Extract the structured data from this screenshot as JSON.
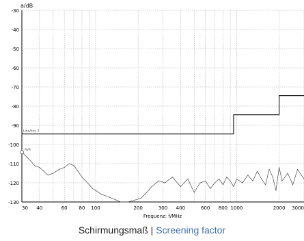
{
  "chart_data": {
    "type": "line",
    "title": "",
    "ylabel": "a/dB",
    "xlabel": "Frequenz: f/MHz",
    "x_scale": "log",
    "xlim": [
      30,
      3000
    ],
    "ylim": [
      -130,
      -30
    ],
    "grid": true,
    "x_tick_labels": [
      "30",
      "40",
      "60",
      "80",
      "100",
      "200",
      "300",
      "400",
      "600",
      "800",
      "1000",
      "2000",
      "3000"
    ],
    "x_tick_values": [
      30,
      40,
      60,
      80,
      100,
      200,
      300,
      400,
      600,
      800,
      1000,
      2000,
      3000
    ],
    "y_tick_values": [
      -30,
      -40,
      -50,
      -60,
      -70,
      -80,
      -90,
      -100,
      -110,
      -120,
      -130
    ],
    "y_tick_labels": [
      "-30",
      "-40",
      "-50",
      "-60",
      "-70",
      "-80",
      "-90",
      "-100",
      "-110",
      "-120",
      "-130"
    ],
    "limit_line": {
      "label": "Line/line 2",
      "x": [
        30,
        950,
        950,
        2000,
        2000,
        3000
      ],
      "y": [
        -94.5,
        -94.5,
        -84.5,
        -84.5,
        -74.5,
        -74.5
      ]
    },
    "series": [
      {
        "name": "AVR",
        "x": [
          30,
          31,
          33,
          35,
          37,
          40,
          43,
          46,
          50,
          55,
          60,
          65,
          70,
          75,
          80,
          85,
          90,
          95,
          100,
          110,
          120,
          130,
          140,
          150,
          170,
          190,
          210,
          230,
          250,
          280,
          310,
          350,
          400,
          450,
          500,
          550,
          600,
          650,
          700,
          750,
          800,
          850,
          900,
          950,
          1000,
          1100,
          1200,
          1300,
          1400,
          1500,
          1600,
          1700,
          1800,
          1900,
          2000,
          2100,
          2300,
          2500,
          2700,
          3000
        ],
        "y": [
          -104,
          -105,
          -107,
          -109,
          -111,
          -112,
          -114,
          -116,
          -115,
          -113,
          -112,
          -110,
          -111,
          -114,
          -117,
          -119,
          -121,
          -123,
          -124,
          -126,
          -127,
          -128,
          -129,
          -130,
          -130,
          -129,
          -128,
          -125,
          -122,
          -119,
          -120,
          -117,
          -122,
          -118,
          -125,
          -120,
          -119,
          -123,
          -120,
          -118,
          -121,
          -117,
          -119,
          -122,
          -118,
          -120,
          -116,
          -119,
          -114,
          -118,
          -121,
          -113,
          -117,
          -124,
          -112,
          -119,
          -115,
          -121,
          -113,
          -118
        ]
      }
    ],
    "colors": {
      "grid": "#aaaaaa",
      "axis": "#000000",
      "trace": "#444444",
      "limit": "#222222"
    }
  },
  "caption": {
    "de": "Schirmungsmaß",
    "separator": "|",
    "en": "Screening factor"
  }
}
